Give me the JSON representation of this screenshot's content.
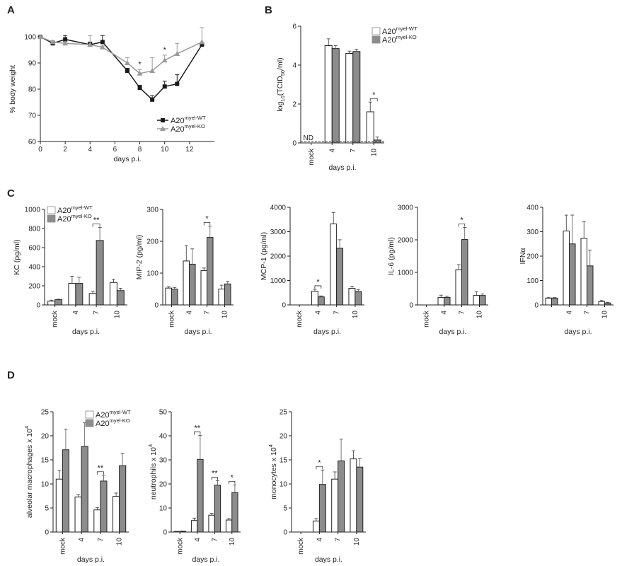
{
  "panels": {
    "A": "A",
    "B": "B",
    "C": "C",
    "D": "D"
  },
  "chart_data": [
    {
      "id": "A",
      "type": "line",
      "xlabel": "days p.i.",
      "ylabel": "% body weight",
      "xlim": [
        0,
        14
      ],
      "ylim": [
        60,
        100
      ],
      "xticks": [
        0,
        2,
        4,
        6,
        8,
        10,
        12
      ],
      "yticks": [
        60,
        70,
        80,
        90,
        100
      ],
      "legend": {
        "position": "bottom-right"
      },
      "series": [
        {
          "name": "A20",
          "sup": "myel-WT",
          "color": "#1a1a1a",
          "marker": "square",
          "x": [
            0,
            1,
            2,
            4,
            5,
            7,
            8,
            9,
            10,
            11,
            13
          ],
          "y": [
            100,
            97.5,
            99,
            97,
            98,
            87,
            80.5,
            76,
            81,
            82,
            97
          ],
          "err": [
            0.5,
            0.5,
            1.5,
            1,
            2.5,
            1,
            1,
            1.5,
            2,
            3.5,
            0.5
          ]
        },
        {
          "name": "A20",
          "sup": "myel-KO",
          "color": "#9a9a9a",
          "marker": "triangle",
          "x": [
            0,
            1,
            2,
            4,
            5,
            7,
            8,
            9,
            10,
            11,
            13
          ],
          "y": [
            100,
            98,
            97.5,
            97,
            96,
            90,
            86,
            87,
            91,
            93.5,
            98
          ],
          "err": [
            0.5,
            0.5,
            0.5,
            3.5,
            0.5,
            2,
            1.5,
            5,
            2,
            4,
            5.5
          ]
        }
      ],
      "annotations": [
        {
          "x": 8,
          "text": "*"
        },
        {
          "x": 10,
          "text": "*"
        }
      ]
    },
    {
      "id": "B",
      "type": "bar",
      "xlabel": "days p.i.",
      "ylabel": "log10(TCID50/ml)",
      "ylim": [
        0,
        6
      ],
      "yticks": [
        0,
        2,
        4,
        6
      ],
      "categories": [
        "mock",
        "4",
        "7",
        "10"
      ],
      "legend": {
        "position": "top-right"
      },
      "series": [
        {
          "name": "A20",
          "sup": "myel-WT",
          "values": [
            null,
            5.0,
            4.6,
            1.6
          ],
          "err": [
            null,
            0.35,
            0.12,
            0.5
          ]
        },
        {
          "name": "A20",
          "sup": "myel-KO",
          "values": [
            null,
            4.85,
            4.7,
            0.15
          ],
          "err": [
            null,
            0.15,
            0.12,
            0.15
          ]
        }
      ],
      "annotations": [
        {
          "category": "mock",
          "text": "ND"
        },
        {
          "category": "10",
          "text": "*"
        }
      ]
    },
    {
      "id": "C1",
      "type": "bar",
      "xlabel": "days p.i.",
      "ylabel": "KC (pg/ml)",
      "ylim": [
        0,
        1000
      ],
      "yticks": [
        0,
        200,
        400,
        600,
        800,
        1000
      ],
      "categories": [
        "mock",
        "4",
        "7",
        "10"
      ],
      "legend": {
        "position": "top-left"
      },
      "series": [
        {
          "name": "A20",
          "sup": "myel-WT",
          "values": [
            40,
            225,
            120,
            235
          ],
          "err": [
            10,
            75,
            25,
            35
          ]
        },
        {
          "name": "A20",
          "sup": "myel-KO",
          "values": [
            55,
            225,
            675,
            150
          ],
          "err": [
            5,
            65,
            135,
            25
          ]
        }
      ],
      "annotations": [
        {
          "category": "7",
          "text": "**"
        }
      ]
    },
    {
      "id": "C2",
      "type": "bar",
      "xlabel": "days p.i.",
      "ylabel": "MIP-2 (pg/ml)",
      "ylim": [
        0,
        300
      ],
      "yticks": [
        0,
        100,
        200,
        300
      ],
      "categories": [
        "mock",
        "4",
        "7",
        "10"
      ],
      "series": [
        {
          "name": "A20",
          "sup": "myel-WT",
          "values": [
            53,
            138,
            108,
            50
          ],
          "err": [
            5,
            48,
            8,
            12
          ]
        },
        {
          "name": "A20",
          "sup": "myel-KO",
          "values": [
            50,
            128,
            212,
            66
          ],
          "err": [
            5,
            48,
            36,
            8
          ]
        }
      ],
      "annotations": [
        {
          "category": "7",
          "text": "*"
        }
      ]
    },
    {
      "id": "C3",
      "type": "bar",
      "xlabel": "days p.i.",
      "ylabel": "MCP-1 (pg/ml)",
      "ylim": [
        0,
        4000
      ],
      "yticks": [
        0,
        1000,
        2000,
        3000,
        4000
      ],
      "categories": [
        "mock",
        "4",
        "7",
        "10"
      ],
      "series": [
        {
          "name": "A20",
          "sup": "myel-WT",
          "values": [
            0,
            560,
            3320,
            680
          ],
          "err": [
            0,
            80,
            470,
            90
          ]
        },
        {
          "name": "A20",
          "sup": "myel-KO",
          "values": [
            0,
            330,
            2320,
            550
          ],
          "err": [
            0,
            40,
            350,
            80
          ]
        }
      ],
      "annotations": [
        {
          "category": "4",
          "text": "*"
        }
      ]
    },
    {
      "id": "C4",
      "type": "bar",
      "xlabel": "days p.i.",
      "ylabel": "IL-6 (pg/ml)",
      "ylim": [
        0,
        3000
      ],
      "yticks": [
        0,
        1000,
        2000,
        3000
      ],
      "categories": [
        "mock",
        "4",
        "7",
        "10"
      ],
      "series": [
        {
          "name": "A20",
          "sup": "myel-WT",
          "values": [
            0,
            230,
            1080,
            290
          ],
          "err": [
            0,
            70,
            160,
            110
          ]
        },
        {
          "name": "A20",
          "sup": "myel-KO",
          "values": [
            0,
            230,
            2010,
            290
          ],
          "err": [
            0,
            40,
            370,
            50
          ]
        }
      ],
      "annotations": [
        {
          "category": "7",
          "text": "*"
        }
      ]
    },
    {
      "id": "C5",
      "type": "bar",
      "xlabel": "days p.i.",
      "ylabel": "IFNα",
      "ylim": [
        0,
        400
      ],
      "yticks": [
        0,
        100,
        200,
        300,
        400
      ],
      "categories": [
        "",
        "4",
        "7",
        "10"
      ],
      "series": [
        {
          "name": "A20",
          "sup": "myel-WT",
          "values": [
            28,
            303,
            273,
            14
          ],
          "err": [
            2,
            65,
            68,
            4
          ]
        },
        {
          "name": "A20",
          "sup": "myel-KO",
          "values": [
            28,
            250,
            160,
            8
          ],
          "err": [
            2,
            118,
            65,
            3
          ]
        }
      ],
      "annotations": []
    },
    {
      "id": "D1",
      "type": "bar",
      "xlabel": "days p.i.",
      "ylabel": "alveolar macrophages x 10",
      "ylabel_sup": "4",
      "ylim": [
        0,
        25
      ],
      "yticks": [
        0,
        5,
        10,
        15,
        20,
        25
      ],
      "categories": [
        "mock",
        "4",
        "7",
        "10"
      ],
      "legend": {
        "position": "top-right"
      },
      "series": [
        {
          "name": "A20",
          "sup": "myel-WT",
          "values": [
            11,
            7.3,
            4.6,
            7.4
          ],
          "err": [
            1.8,
            0.5,
            0.5,
            0.7
          ]
        },
        {
          "name": "A20",
          "sup": "myel-KO",
          "values": [
            17.1,
            17.8,
            10.6,
            13.8
          ],
          "err": [
            4.3,
            4.9,
            1.2,
            2.6
          ]
        }
      ],
      "annotations": [
        {
          "category": "7",
          "text": "**"
        }
      ]
    },
    {
      "id": "D2",
      "type": "bar",
      "xlabel": "days p.i.",
      "ylabel": "neutrophils x 10",
      "ylabel_sup": "4",
      "ylim": [
        0,
        50
      ],
      "yticks": [
        0,
        10,
        20,
        30,
        40,
        50
      ],
      "categories": [
        "mock",
        "4",
        "7",
        "10"
      ],
      "series": [
        {
          "name": "A20",
          "sup": "myel-WT",
          "values": [
            0.2,
            4.8,
            7,
            5
          ],
          "err": [
            0.1,
            1,
            0.8,
            0.6
          ]
        },
        {
          "name": "A20",
          "sup": "myel-KO",
          "values": [
            0.3,
            30.2,
            19.5,
            16.4
          ],
          "err": [
            0.1,
            10,
            1.8,
            3.2
          ]
        }
      ],
      "annotations": [
        {
          "category": "4",
          "text": "**"
        },
        {
          "category": "7",
          "text": "**"
        },
        {
          "category": "10",
          "text": "*"
        }
      ]
    },
    {
      "id": "D3",
      "type": "bar",
      "xlabel": "days p.i.",
      "ylabel": "monocytes x 10",
      "ylabel_sup": "4",
      "ylim": [
        0,
        25
      ],
      "yticks": [
        0,
        5,
        10,
        15,
        20,
        25
      ],
      "categories": [
        "mock",
        "4",
        "7",
        "10"
      ],
      "series": [
        {
          "name": "A20",
          "sup": "myel-WT",
          "values": [
            0,
            2.3,
            11,
            15.2
          ],
          "err": [
            0,
            0.5,
            1.5,
            1.7
          ]
        },
        {
          "name": "A20",
          "sup": "myel-KO",
          "values": [
            0,
            9.9,
            14.8,
            13.5
          ],
          "err": [
            0,
            3,
            4.5,
            1.8
          ]
        }
      ],
      "annotations": [
        {
          "category": "4",
          "text": "*"
        }
      ]
    }
  ]
}
